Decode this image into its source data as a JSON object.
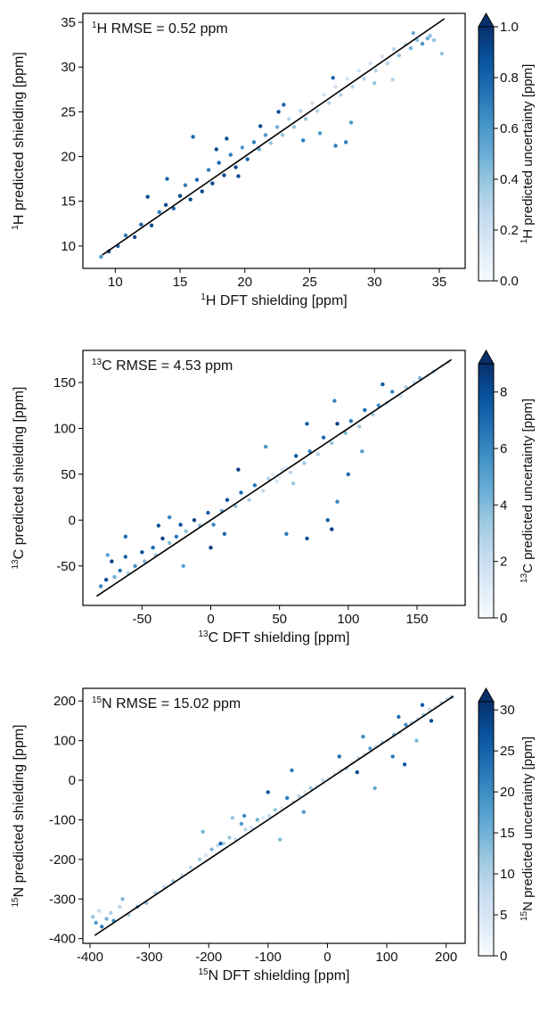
{
  "colors": {
    "scale": [
      "#f7fbff",
      "#deebf7",
      "#c6dbef",
      "#9ecae1",
      "#6baed6",
      "#4292c6",
      "#2171b5",
      "#08519c",
      "#08306b"
    ],
    "fit_line": "#000000",
    "frame": "#000000"
  },
  "chart_data": [
    {
      "type": "scatter",
      "nucleus": "1H",
      "annotation_sup": "1",
      "annotation_main": "H  RMSE = 0.52 ppm",
      "xlabel_sup": "1",
      "xlabel_main": "H DFT shielding [ppm]",
      "ylabel_sup": "1",
      "ylabel_main": "H predicted shielding [ppm]",
      "cbar_label_sup": "1",
      "cbar_label_main": "H predicted uncertainty [ppm]",
      "xlim": [
        7.5,
        37
      ],
      "ylim": [
        7.5,
        36
      ],
      "xticks": [
        10,
        15,
        20,
        25,
        30,
        35
      ],
      "yticks": [
        10,
        15,
        20,
        25,
        30,
        35
      ],
      "tick_labels_x": [
        "10",
        "15",
        "20",
        "25",
        "30",
        "35"
      ],
      "tick_labels_y": [
        "10",
        "15",
        "20",
        "25",
        "30",
        "35"
      ],
      "cbar_range": [
        0,
        1
      ],
      "cbar_ticks": [
        0,
        0.2,
        0.4,
        0.6,
        0.8,
        1.0
      ],
      "cbar_tick_labels": [
        "0.0",
        "0.2",
        "0.4",
        "0.6",
        "0.8",
        "1.0"
      ],
      "cbar_extend": "max",
      "fit_line": [
        [
          9,
          9
        ],
        [
          35.4,
          35.4
        ]
      ],
      "grid": false,
      "points": [
        [
          8.9,
          8.8,
          0.6
        ],
        [
          9.5,
          9.4,
          0.9
        ],
        [
          10.2,
          10.0,
          0.8
        ],
        [
          10.8,
          11.2,
          0.7
        ],
        [
          11.5,
          11.0,
          0.9
        ],
        [
          12.0,
          12.4,
          0.8
        ],
        [
          12.8,
          12.3,
          0.9
        ],
        [
          13.4,
          13.8,
          0.7
        ],
        [
          13.9,
          14.6,
          0.9
        ],
        [
          14.5,
          14.2,
          0.8
        ],
        [
          15.0,
          15.6,
          0.9
        ],
        [
          15.4,
          16.8,
          0.7
        ],
        [
          15.8,
          15.2,
          0.9
        ],
        [
          16.3,
          17.4,
          0.8
        ],
        [
          16.7,
          16.1,
          0.9
        ],
        [
          17.2,
          18.5,
          0.7
        ],
        [
          17.5,
          17.0,
          0.9
        ],
        [
          18.0,
          19.3,
          0.8
        ],
        [
          18.4,
          17.9,
          0.9
        ],
        [
          18.9,
          20.2,
          0.7
        ],
        [
          19.3,
          18.8,
          0.9
        ],
        [
          19.8,
          21.0,
          0.6
        ],
        [
          20.2,
          19.7,
          0.8
        ],
        [
          20.7,
          21.6,
          0.7
        ],
        [
          21.1,
          20.8,
          0.5
        ],
        [
          21.6,
          22.4,
          0.6
        ],
        [
          22.0,
          21.5,
          0.4
        ],
        [
          22.5,
          23.3,
          0.5
        ],
        [
          22.9,
          22.4,
          0.4
        ],
        [
          23.4,
          24.2,
          0.3
        ],
        [
          23.8,
          23.3,
          0.4
        ],
        [
          24.3,
          25.1,
          0.3
        ],
        [
          24.7,
          24.2,
          0.4
        ],
        [
          25.2,
          26.0,
          0.2
        ],
        [
          25.6,
          25.1,
          0.3
        ],
        [
          26.1,
          26.9,
          0.2
        ],
        [
          26.5,
          26.0,
          0.3
        ],
        [
          27.0,
          27.8,
          0.2
        ],
        [
          27.4,
          26.9,
          0.3
        ],
        [
          27.9,
          28.7,
          0.2
        ],
        [
          28.3,
          27.8,
          0.3
        ],
        [
          28.8,
          29.6,
          0.2
        ],
        [
          29.2,
          28.7,
          0.3
        ],
        [
          29.7,
          30.4,
          0.2
        ],
        [
          30.1,
          29.6,
          0.3
        ],
        [
          30.6,
          31.2,
          0.2
        ],
        [
          31.0,
          30.4,
          0.3
        ],
        [
          31.5,
          32.0,
          0.3
        ],
        [
          31.9,
          31.3,
          0.4
        ],
        [
          32.4,
          32.5,
          0.3
        ],
        [
          32.8,
          32.1,
          0.5
        ],
        [
          33.3,
          33.0,
          0.4
        ],
        [
          33.7,
          32.6,
          0.6
        ],
        [
          34.1,
          33.2,
          0.5
        ],
        [
          34.6,
          33.0,
          0.4
        ],
        [
          35.2,
          31.5,
          0.4
        ],
        [
          12.5,
          15.5,
          0.9
        ],
        [
          14.0,
          17.5,
          0.8
        ],
        [
          16.0,
          22.2,
          0.8
        ],
        [
          17.8,
          20.8,
          0.9
        ],
        [
          19.5,
          17.8,
          0.9
        ],
        [
          21.2,
          23.4,
          0.9
        ],
        [
          23.0,
          25.8,
          0.8
        ],
        [
          24.5,
          21.8,
          0.7
        ],
        [
          25.8,
          22.6,
          0.6
        ],
        [
          27.0,
          21.2,
          0.7
        ],
        [
          27.8,
          21.6,
          0.7
        ],
        [
          28.2,
          23.8,
          0.6
        ],
        [
          30.0,
          28.2,
          0.4
        ],
        [
          31.4,
          28.6,
          0.3
        ],
        [
          33.0,
          33.8,
          0.5
        ],
        [
          34.3,
          33.5,
          0.4
        ],
        [
          26.8,
          28.8,
          0.8
        ],
        [
          22.6,
          25.0,
          0.9
        ],
        [
          18.6,
          22.0,
          0.9
        ]
      ]
    },
    {
      "type": "scatter",
      "nucleus": "13C",
      "annotation_sup": "13",
      "annotation_main": "C  RMSE = 4.53 ppm",
      "xlabel_sup": "13",
      "xlabel_main": "C DFT shielding [ppm]",
      "ylabel_sup": "13",
      "ylabel_main": "C predicted shielding [ppm]",
      "cbar_label_sup": "13",
      "cbar_label_main": "C predicted uncertainty [ppm]",
      "xlim": [
        -93,
        185
      ],
      "ylim": [
        -93,
        185
      ],
      "xticks": [
        -50,
        0,
        50,
        100,
        150
      ],
      "yticks": [
        -50,
        0,
        50,
        100,
        150
      ],
      "tick_labels_x": [
        "-50",
        "0",
        "50",
        "100",
        "150"
      ],
      "tick_labels_y": [
        "-50",
        "0",
        "50",
        "100",
        "150"
      ],
      "cbar_range": [
        0,
        9
      ],
      "cbar_ticks": [
        0,
        2,
        4,
        6,
        8
      ],
      "cbar_tick_labels": [
        "0",
        "2",
        "4",
        "6",
        "8"
      ],
      "cbar_extend": "max",
      "fit_line": [
        [
          -83,
          -83
        ],
        [
          175,
          175
        ]
      ],
      "grid": false,
      "points": [
        [
          -80,
          -72,
          6.0
        ],
        [
          -76,
          -65,
          8.0
        ],
        [
          -72,
          -45,
          8.5
        ],
        [
          -70,
          -62,
          4.5
        ],
        [
          -66,
          -55,
          6.5
        ],
        [
          -62,
          -40,
          7.5
        ],
        [
          -60,
          -58,
          3.0
        ],
        [
          -55,
          -50,
          5.5
        ],
        [
          -50,
          -35,
          8.0
        ],
        [
          -48,
          -45,
          4.0
        ],
        [
          -42,
          -30,
          7.0
        ],
        [
          -40,
          -38,
          3.5
        ],
        [
          -35,
          -20,
          8.5
        ],
        [
          -30,
          -25,
          4.0
        ],
        [
          -25,
          -18,
          6.5
        ],
        [
          -22,
          -5,
          8.0
        ],
        [
          -18,
          -12,
          3.5
        ],
        [
          -12,
          0,
          8.5
        ],
        [
          -8,
          -6,
          4.0
        ],
        [
          -2,
          8,
          7.5
        ],
        [
          2,
          -5,
          6.0
        ],
        [
          8,
          10,
          4.5
        ],
        [
          12,
          22,
          8.0
        ],
        [
          18,
          15,
          3.5
        ],
        [
          22,
          30,
          7.0
        ],
        [
          28,
          22,
          3.0
        ],
        [
          32,
          38,
          6.5
        ],
        [
          38,
          32,
          2.5
        ],
        [
          42,
          45,
          3.0
        ],
        [
          48,
          42,
          1.5
        ],
        [
          52,
          55,
          2.0
        ],
        [
          58,
          52,
          2.5
        ],
        [
          62,
          70,
          7.5
        ],
        [
          68,
          62,
          3.5
        ],
        [
          72,
          75,
          6.0
        ],
        [
          78,
          72,
          3.0
        ],
        [
          82,
          90,
          7.0
        ],
        [
          88,
          84,
          3.5
        ],
        [
          92,
          105,
          8.5
        ],
        [
          98,
          95,
          4.0
        ],
        [
          102,
          108,
          6.5
        ],
        [
          108,
          102,
          3.5
        ],
        [
          112,
          120,
          7.0
        ],
        [
          118,
          115,
          3.0
        ],
        [
          122,
          125,
          5.5
        ],
        [
          128,
          128,
          2.5
        ],
        [
          132,
          140,
          6.0
        ],
        [
          138,
          135,
          2.0
        ],
        [
          142,
          145,
          3.0
        ],
        [
          148,
          150,
          2.0
        ],
        [
          152,
          155,
          4.0
        ],
        [
          158,
          158,
          1.5
        ],
        [
          162,
          162,
          2.5
        ],
        [
          168,
          168,
          1.5
        ],
        [
          173,
          172,
          2.0
        ],
        [
          -75,
          -38,
          5.0
        ],
        [
          -62,
          -18,
          7.0
        ],
        [
          -38,
          -6,
          8.0
        ],
        [
          -30,
          3,
          6.0
        ],
        [
          -20,
          -50,
          5.0
        ],
        [
          0,
          -30,
          8.5
        ],
        [
          10,
          -15,
          7.0
        ],
        [
          55,
          -15,
          6.5
        ],
        [
          70,
          -20,
          8.0
        ],
        [
          85,
          0,
          7.5
        ],
        [
          88,
          -10,
          8.5
        ],
        [
          92,
          20,
          6.0
        ],
        [
          100,
          50,
          7.0
        ],
        [
          110,
          75,
          5.0
        ],
        [
          125,
          148,
          7.5
        ],
        [
          90,
          130,
          6.0
        ],
        [
          70,
          105,
          7.5
        ],
        [
          40,
          80,
          5.5
        ],
        [
          20,
          55,
          8.5
        ],
        [
          60,
          40,
          3.5
        ],
        [
          45,
          50,
          1.0
        ],
        [
          50,
          48,
          0.8
        ],
        [
          55,
          57,
          1.2
        ]
      ]
    },
    {
      "type": "scatter",
      "nucleus": "15N",
      "annotation_sup": "15",
      "annotation_main": "N  RMSE = 15.02 ppm",
      "xlabel_sup": "15",
      "xlabel_main": "N DFT shielding [ppm]",
      "ylabel_sup": "15",
      "ylabel_main": "N predicted shielding [ppm]",
      "cbar_label_sup": "15",
      "cbar_label_main": "N predicted uncertainty [ppm]",
      "xlim": [
        -412,
        232
      ],
      "ylim": [
        -412,
        232
      ],
      "xticks": [
        -400,
        -300,
        -200,
        -100,
        0,
        100,
        200
      ],
      "yticks": [
        -400,
        -300,
        -200,
        -100,
        0,
        100,
        200
      ],
      "tick_labels_x": [
        "-400",
        "-300",
        "-200",
        "-100",
        "0",
        "100",
        "200"
      ],
      "tick_labels_y": [
        "-400",
        "-300",
        "-200",
        "-100",
        "0",
        "100",
        "200"
      ],
      "cbar_range": [
        0,
        31
      ],
      "cbar_ticks": [
        0,
        5,
        10,
        15,
        20,
        25,
        30
      ],
      "cbar_tick_labels": [
        "0",
        "5",
        "10",
        "15",
        "20",
        "25",
        "30"
      ],
      "cbar_extend": "max",
      "fit_line": [
        [
          -392,
          -392
        ],
        [
          212,
          212
        ]
      ],
      "grid": false,
      "points": [
        [
          -395,
          -345,
          12
        ],
        [
          -390,
          -360,
          18
        ],
        [
          -385,
          -330,
          8
        ],
        [
          -380,
          -370,
          22
        ],
        [
          -372,
          -350,
          15
        ],
        [
          -365,
          -335,
          10
        ],
        [
          -360,
          -355,
          20
        ],
        [
          -350,
          -320,
          9
        ],
        [
          -345,
          -300,
          14
        ],
        [
          -335,
          -340,
          11
        ],
        [
          -320,
          -320,
          16
        ],
        [
          -305,
          -310,
          13
        ],
        [
          -290,
          -285,
          10
        ],
        [
          -275,
          -270,
          8
        ],
        [
          -260,
          -255,
          12
        ],
        [
          -245,
          -240,
          7
        ],
        [
          -230,
          -220,
          9
        ],
        [
          -215,
          -200,
          11
        ],
        [
          -205,
          -190,
          6
        ],
        [
          -195,
          -175,
          14
        ],
        [
          -185,
          -165,
          8
        ],
        [
          -175,
          -160,
          10
        ],
        [
          -165,
          -145,
          12
        ],
        [
          -155,
          -150,
          7
        ],
        [
          -145,
          -110,
          18
        ],
        [
          -138,
          -125,
          9
        ],
        [
          -128,
          -120,
          6
        ],
        [
          -118,
          -100,
          15
        ],
        [
          -108,
          -95,
          5
        ],
        [
          -98,
          -90,
          8
        ],
        [
          -88,
          -75,
          12
        ],
        [
          -78,
          -70,
          4
        ],
        [
          -68,
          -45,
          22
        ],
        [
          -58,
          -55,
          6
        ],
        [
          -48,
          -40,
          9
        ],
        [
          -38,
          -30,
          5
        ],
        [
          -28,
          -20,
          12
        ],
        [
          -18,
          -15,
          4
        ],
        [
          -8,
          0,
          8
        ],
        [
          2,
          5,
          3
        ],
        [
          12,
          15,
          6
        ],
        [
          22,
          25,
          4
        ],
        [
          32,
          30,
          10
        ],
        [
          42,
          45,
          5
        ],
        [
          52,
          55,
          8
        ],
        [
          62,
          65,
          4
        ],
        [
          72,
          80,
          18
        ],
        [
          82,
          85,
          6
        ],
        [
          92,
          95,
          10
        ],
        [
          102,
          100,
          5
        ],
        [
          112,
          115,
          14
        ],
        [
          122,
          120,
          7
        ],
        [
          132,
          140,
          20
        ],
        [
          142,
          145,
          9
        ],
        [
          152,
          155,
          6
        ],
        [
          162,
          165,
          12
        ],
        [
          172,
          178,
          8
        ],
        [
          182,
          185,
          5
        ],
        [
          192,
          195,
          10
        ],
        [
          202,
          205,
          7
        ],
        [
          210,
          210,
          12
        ],
        [
          -210,
          -130,
          15
        ],
        [
          -180,
          -160,
          25
        ],
        [
          -160,
          -95,
          12
        ],
        [
          -140,
          -90,
          20
        ],
        [
          -100,
          -30,
          26
        ],
        [
          -60,
          25,
          22
        ],
        [
          -80,
          -150,
          14
        ],
        [
          -40,
          -80,
          18
        ],
        [
          20,
          60,
          24
        ],
        [
          50,
          20,
          28
        ],
        [
          80,
          -20,
          16
        ],
        [
          110,
          60,
          22
        ],
        [
          130,
          40,
          26
        ],
        [
          150,
          100,
          14
        ],
        [
          120,
          160,
          24
        ],
        [
          60,
          110,
          20
        ],
        [
          160,
          190,
          26
        ],
        [
          175,
          150,
          28
        ]
      ]
    }
  ]
}
